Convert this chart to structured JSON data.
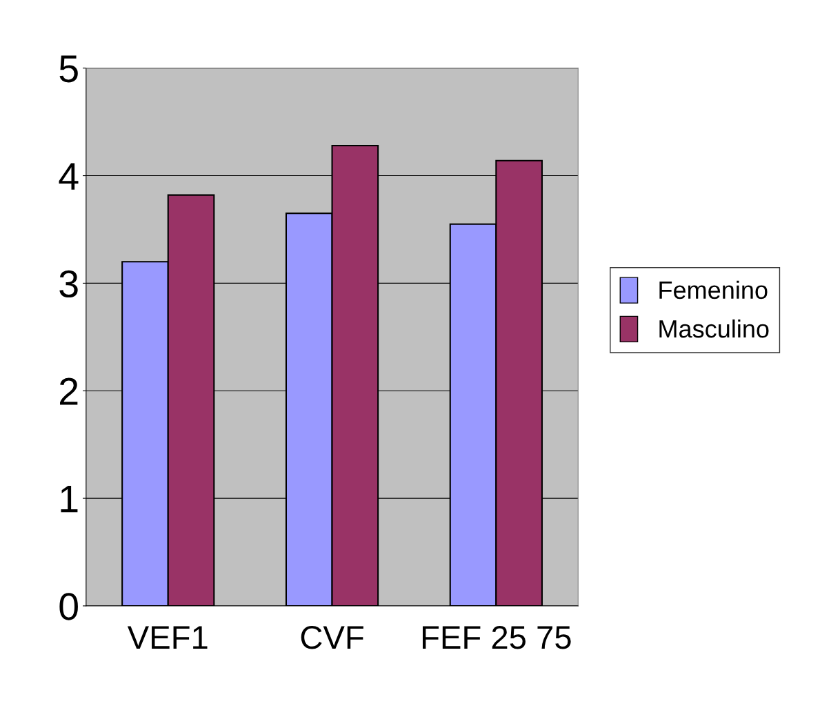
{
  "chart_data": {
    "type": "bar",
    "categories": [
      "VEF1",
      "CVF",
      "FEF 25 75"
    ],
    "series": [
      {
        "name": "Femenino",
        "color": "#9999ff",
        "values": [
          3.2,
          3.65,
          3.55
        ]
      },
      {
        "name": "Masculino",
        "color": "#993366",
        "values": [
          3.82,
          4.28,
          4.14
        ]
      }
    ],
    "ylim": [
      0,
      5
    ],
    "yticks": [
      0,
      1,
      2,
      3,
      4,
      5
    ],
    "grid": "y",
    "legend": "right"
  }
}
